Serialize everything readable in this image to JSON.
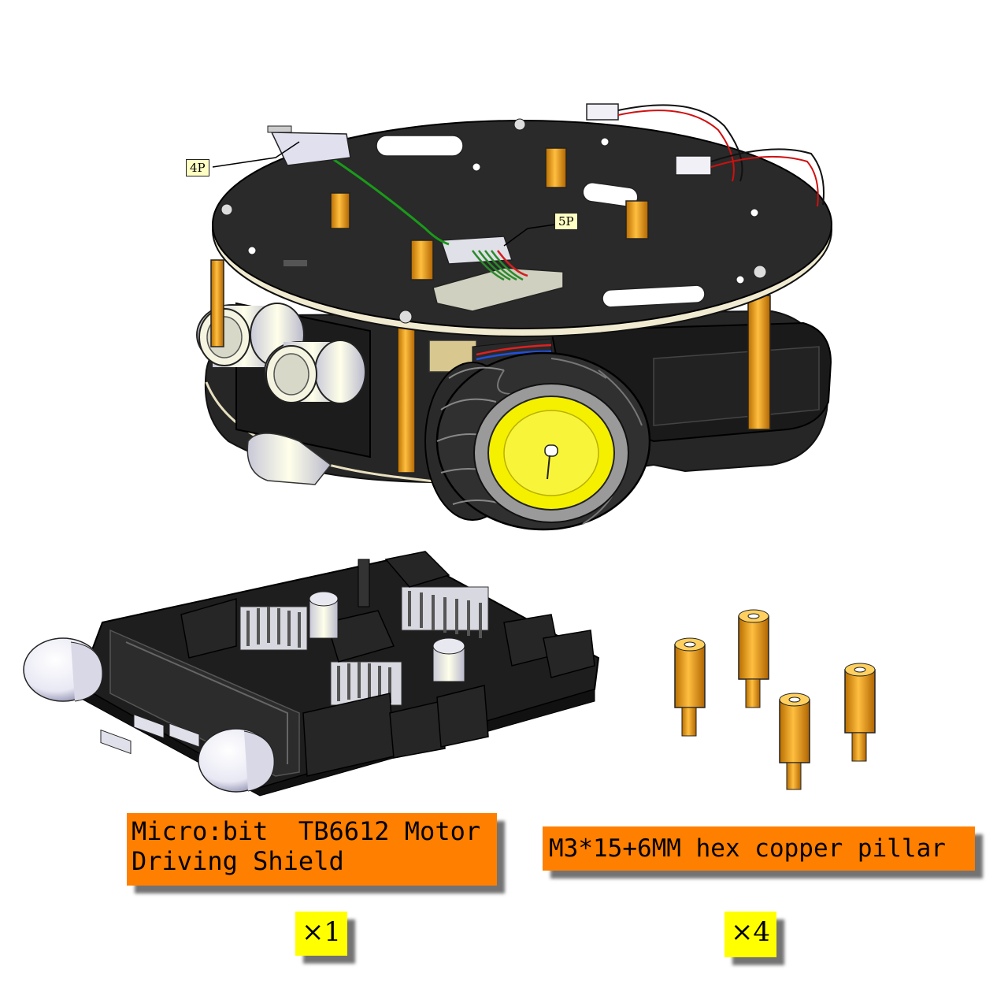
{
  "callouts": {
    "top_connector": "4P",
    "mid_connector": "5P"
  },
  "parts": [
    {
      "name": "Micro:bit  TB6612 Motor Driving Shield",
      "line1": "Micro:bit  TB6612 Motor",
      "line2": "Driving Shield",
      "quantity": "×1"
    },
    {
      "name": "M3*15+6MM hex copper pillar",
      "quantity": "×4"
    }
  ],
  "colors": {
    "label_bg": "#ff7f00",
    "qty_bg": "#ffff00",
    "callout_bg": "#ffffc4",
    "pillar": "#f0a020",
    "board": "#2b2b2b",
    "wheel_hub": "#f4f000"
  }
}
